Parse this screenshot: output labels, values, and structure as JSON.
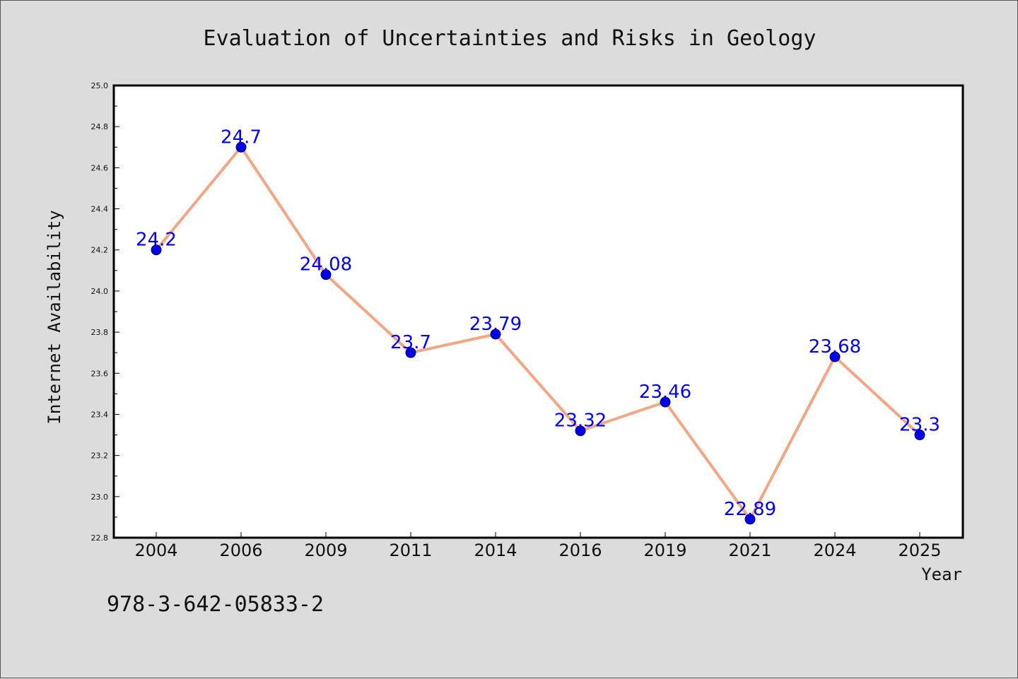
{
  "footer_text": "978-3-642-05833-2",
  "chart_data": {
    "type": "line",
    "title": "Evaluation of Uncertainties and Risks in Geology",
    "xlabel": "Year",
    "ylabel": "Internet Availability",
    "categories": [
      "2004",
      "2006",
      "2009",
      "2011",
      "2014",
      "2016",
      "2019",
      "2021",
      "2024",
      "2025"
    ],
    "values": [
      24.2,
      24.7,
      24.08,
      23.7,
      23.79,
      23.32,
      23.46,
      22.89,
      23.68,
      23.3
    ],
    "data_labels": [
      "24.2",
      "24.7",
      "24.08",
      "23.7",
      "23.79",
      "23.32",
      "23.46",
      "22.89",
      "23.68",
      "23.3"
    ],
    "ylim": [
      22.8,
      25.0
    ],
    "yticks": [
      "22.8",
      "23.0",
      "23.2",
      "23.4",
      "23.6",
      "23.8",
      "24.0",
      "24.2",
      "24.4",
      "24.6",
      "24.8",
      "25.0"
    ],
    "grid": false,
    "legend": "none",
    "colors": {
      "line": "#f4a582",
      "marker": "#0000ee",
      "label": "#0000ff",
      "plot_background": "#ffffff",
      "figure_background": "#dcdcdc"
    }
  }
}
